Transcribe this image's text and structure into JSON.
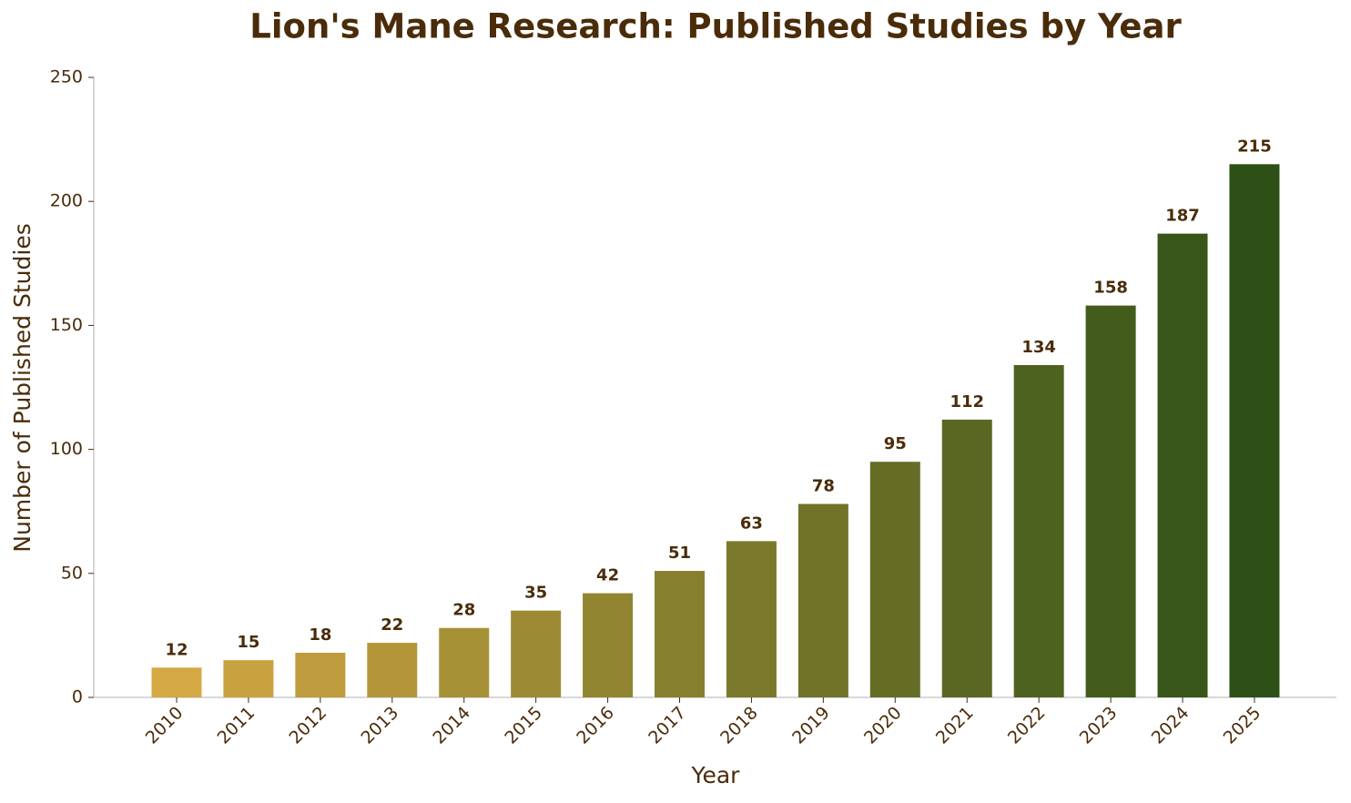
{
  "chart_data": {
    "type": "bar",
    "title": "Lion's Mane Research: Published Studies by Year",
    "x_label": "Year",
    "y_label": "Number of Published Studies",
    "categories": [
      "2010",
      "2011",
      "2012",
      "2013",
      "2014",
      "2015",
      "2016",
      "2017",
      "2018",
      "2019",
      "2020",
      "2021",
      "2022",
      "2023",
      "2024",
      "2025"
    ],
    "values": [
      12,
      15,
      18,
      22,
      28,
      35,
      42,
      51,
      63,
      78,
      95,
      112,
      134,
      158,
      187,
      215
    ],
    "colors": [
      "#d4a843",
      "#c9a240",
      "#be9c3d",
      "#b3963a",
      "#a79137",
      "#9c8b34",
      "#918531",
      "#867f2e",
      "#7b792b",
      "#707328",
      "#656d25",
      "#5a6722",
      "#4e621f",
      "#435c1c",
      "#385619",
      "#2d5016"
    ],
    "ylim": [
      0,
      250
    ],
    "yticks": [
      0,
      50,
      100,
      150,
      200,
      250
    ],
    "grid": false
  }
}
